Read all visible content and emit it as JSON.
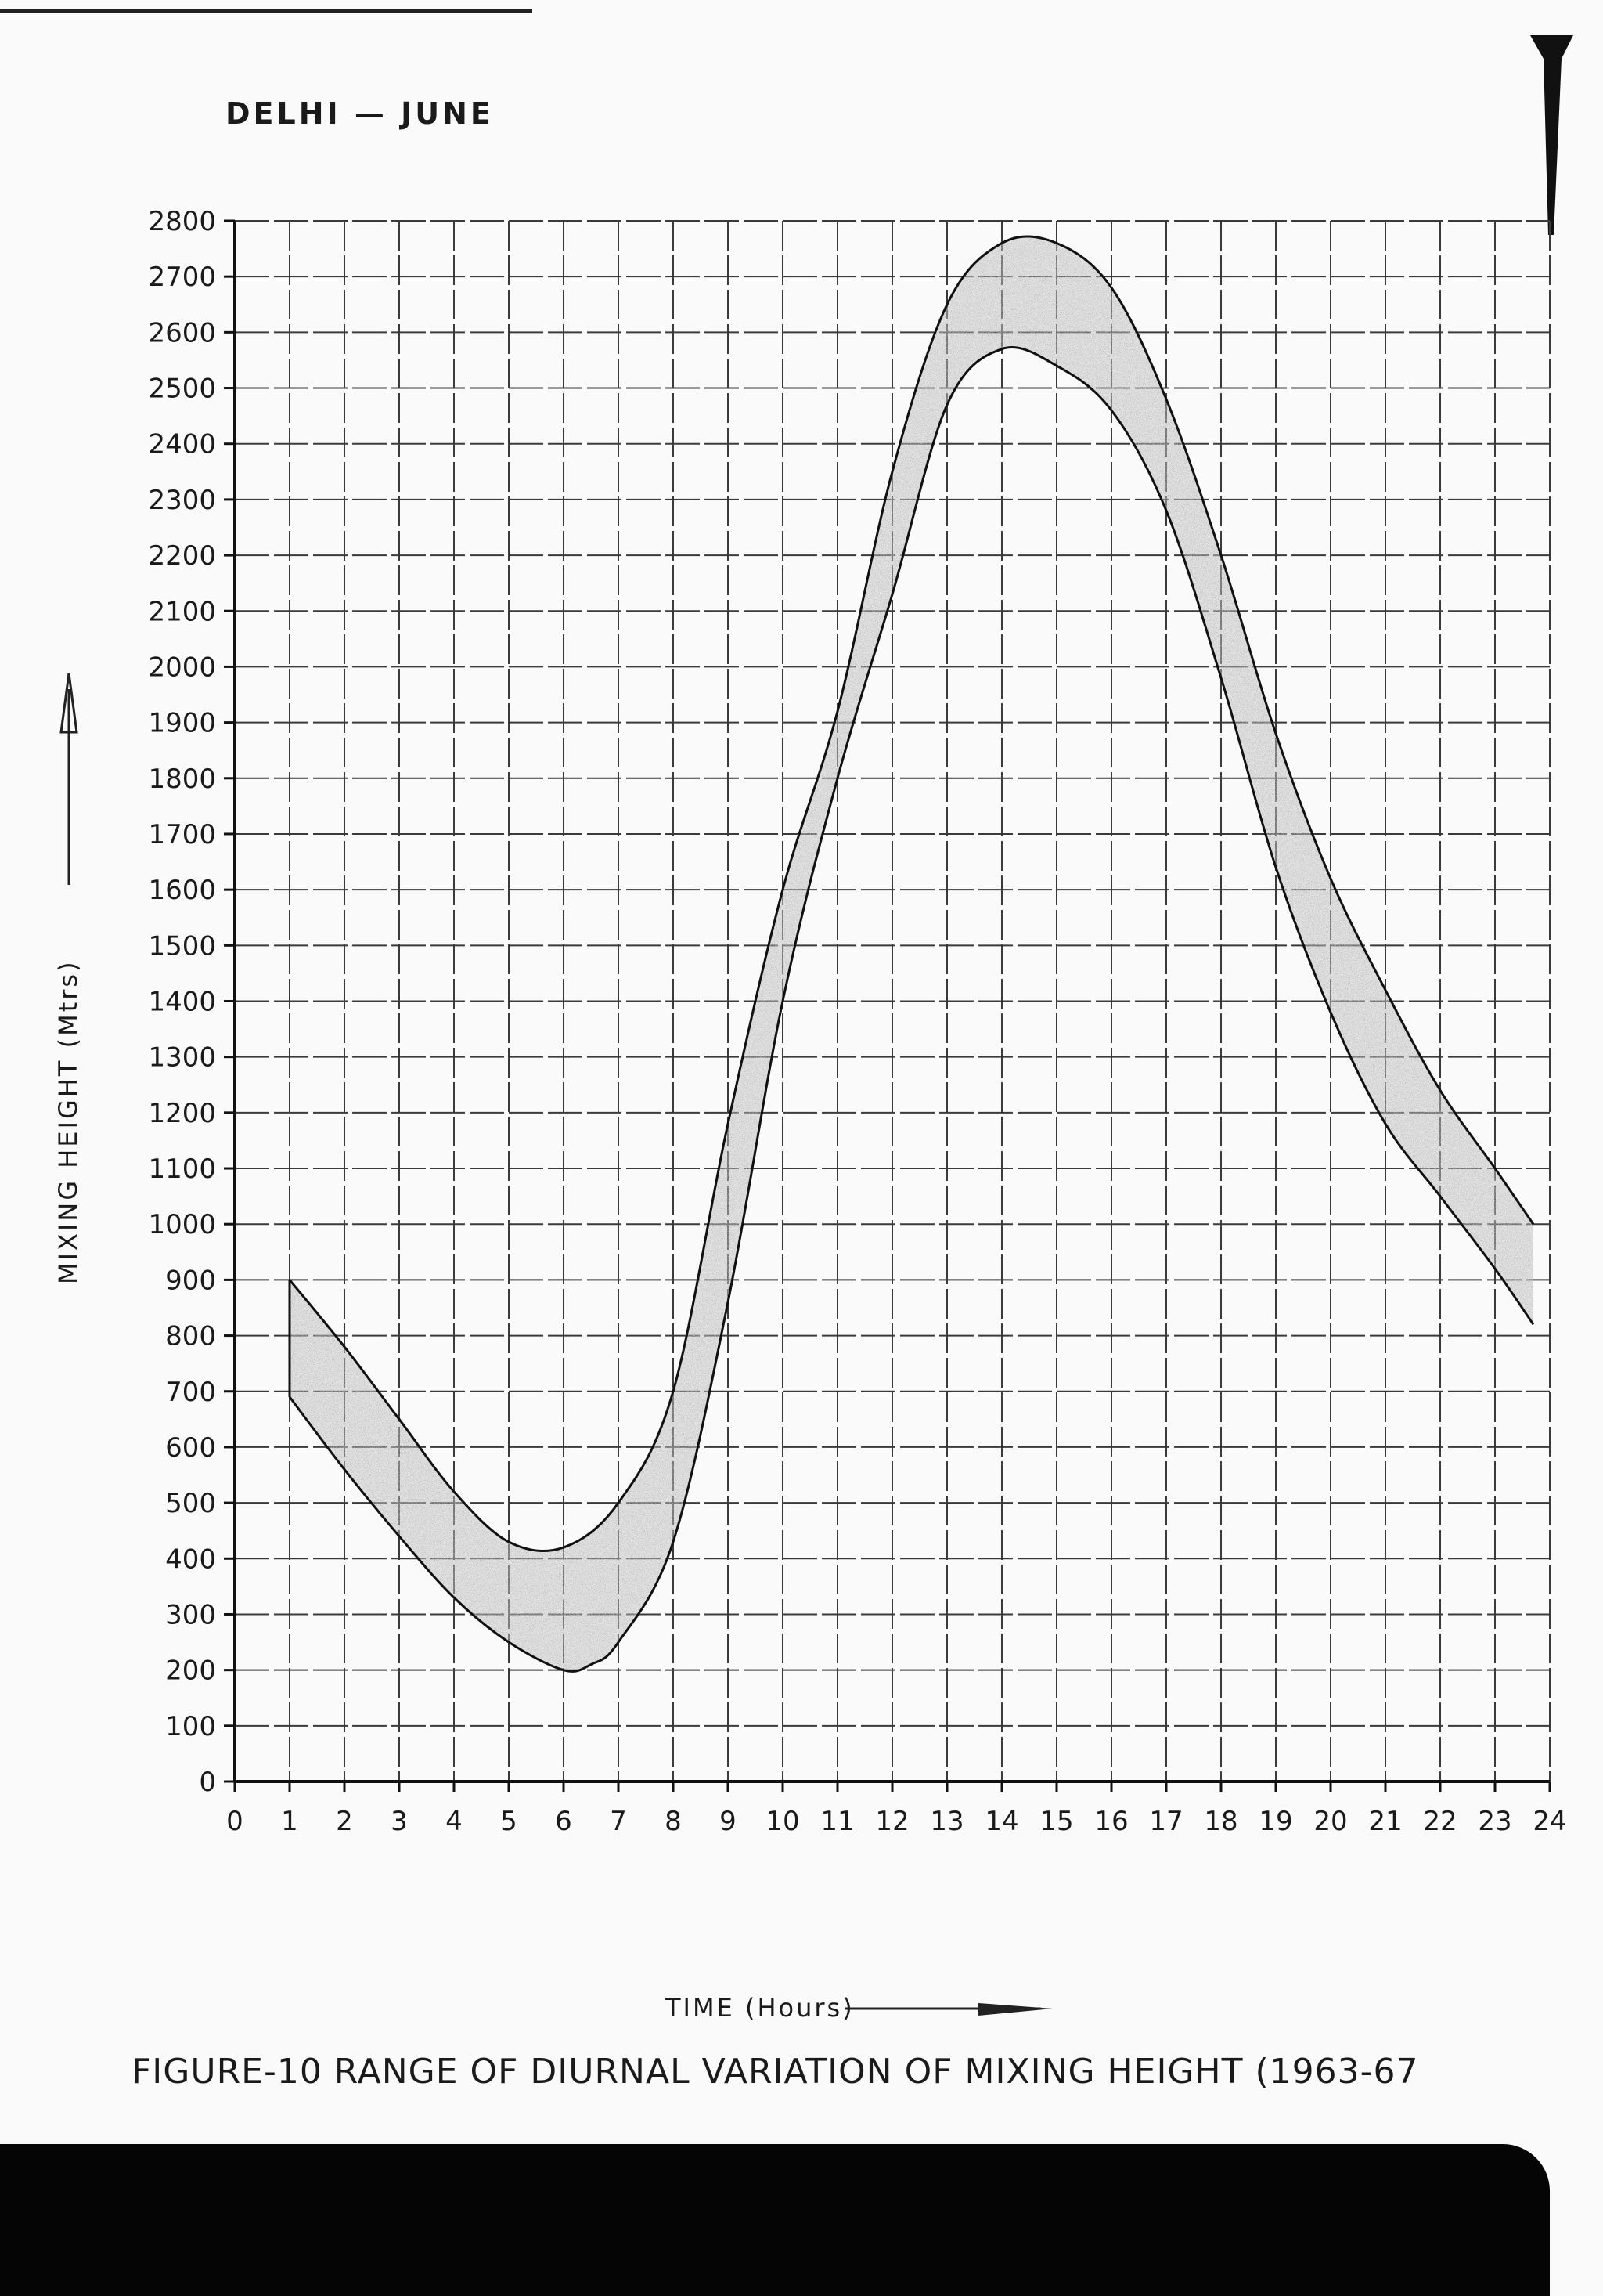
{
  "chart_data": {
    "type": "area",
    "title": "DELHI — JUNE",
    "xlabel": "TIME (Hours)",
    "ylabel": "MIXING HEIGHT (Mtrs)",
    "caption": "FIGURE-10 RANGE OF DIURNAL VARIATION OF MIXING HEIGHT (1963-67",
    "xlim": [
      0,
      24
    ],
    "ylim": [
      0,
      2800
    ],
    "x_ticks": [
      "0",
      "1",
      "2",
      "3",
      "4",
      "5",
      "6",
      "7",
      "8",
      "9",
      "10",
      "11",
      "12",
      "13",
      "14",
      "15",
      "16",
      "17",
      "18",
      "19",
      "20",
      "21",
      "22",
      "23",
      "24"
    ],
    "y_ticks": [
      "0",
      "100",
      "200",
      "300",
      "400",
      "500",
      "600",
      "700",
      "800",
      "900",
      "1000",
      "1100",
      "1200",
      "1300",
      "1400",
      "1500",
      "1600",
      "1700",
      "1800",
      "1900",
      "2000",
      "2100",
      "2200",
      "2300",
      "2400",
      "2500",
      "2600",
      "2700",
      "2800"
    ],
    "grid": true,
    "band_color": "#bdbdbd",
    "series": [
      {
        "x": [
          1,
          2,
          3,
          4,
          5,
          6,
          7,
          8,
          9,
          10,
          11,
          12,
          13,
          14,
          15,
          16,
          17,
          18,
          19,
          20,
          21,
          22,
          23,
          23.7
        ],
        "values": [
          900,
          780,
          650,
          520,
          430,
          420,
          500,
          700,
          1180,
          1600,
          1920,
          2350,
          2650,
          2760,
          2760,
          2680,
          2480,
          2200,
          1880,
          1620,
          1420,
          1240,
          1100,
          1000
        ]
      },
      {
        "x": [
          1,
          2,
          3,
          4,
          5,
          6,
          6.5,
          7,
          8,
          9,
          10,
          11,
          12,
          13,
          14,
          15,
          16,
          17,
          18,
          19,
          20,
          21,
          22,
          23,
          23.7
        ],
        "values": [
          690,
          560,
          440,
          330,
          250,
          200,
          210,
          250,
          430,
          860,
          1400,
          1800,
          2130,
          2470,
          2570,
          2540,
          2460,
          2280,
          1980,
          1640,
          1380,
          1180,
          1050,
          920,
          820
        ]
      }
    ]
  }
}
